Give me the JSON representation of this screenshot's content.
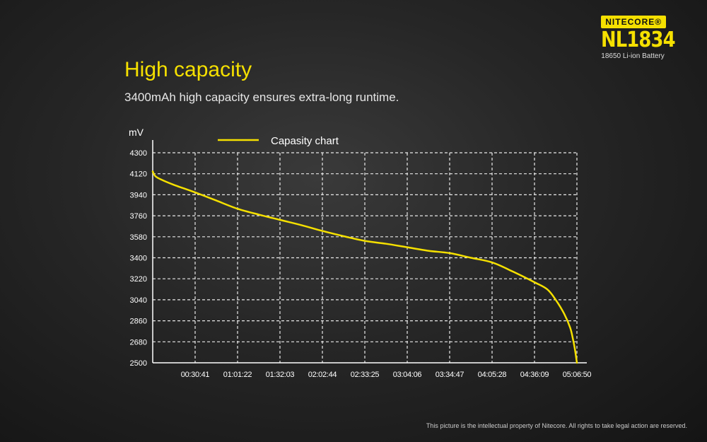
{
  "brand": {
    "logo": "NITECORE®",
    "model": "NL1834",
    "subtitle": "18650 Li-ion Battery"
  },
  "headline": "High capacity",
  "tagline": "3400mAh high capacity ensures extra-long runtime.",
  "footer": "This picture is the intellectual property of Nitecore. All rights to take legal action are reserved.",
  "colors": {
    "accent": "#f5e000",
    "grid": "#e8e8e8",
    "background": "#262626"
  },
  "chart_data": {
    "type": "line",
    "title": "",
    "xlabel": "",
    "ylabel": "mV",
    "ylim": [
      2500,
      4300
    ],
    "yticks": [
      "4300",
      "4120",
      "3940",
      "3760",
      "3580",
      "3400",
      "3220",
      "3040",
      "2860",
      "2680",
      "2500"
    ],
    "xticks": [
      "00:30:41",
      "01:01:22",
      "01:32:03",
      "02:02:44",
      "02:33:25",
      "03:04:06",
      "03:34:47",
      "04:05:28",
      "04:36:09",
      "05:06:50"
    ],
    "xlim_seconds": [
      0,
      18410
    ],
    "grid": true,
    "legend": {
      "position": "top-center",
      "label": "Capasity chart"
    },
    "series": [
      {
        "name": "Capasity chart",
        "color": "#f5e000",
        "x": [
          "00:00:00",
          "00:01:50",
          "00:06:08",
          "00:15:20",
          "00:30:41",
          "00:46:01",
          "01:01:22",
          "01:16:42",
          "01:32:03",
          "01:47:23",
          "02:02:44",
          "02:18:05",
          "02:33:25",
          "02:48:46",
          "03:04:06",
          "03:19:27",
          "03:34:47",
          "03:50:08",
          "04:05:28",
          "04:20:49",
          "04:36:09",
          "04:45:22",
          "04:51:30",
          "04:57:38",
          "05:01:58",
          "05:04:01",
          "05:05:36",
          "05:06:50"
        ],
        "y": [
          4140,
          4100,
          4070,
          4025,
          3960,
          3890,
          3820,
          3770,
          3725,
          3680,
          3630,
          3585,
          3545,
          3520,
          3490,
          3460,
          3440,
          3400,
          3360,
          3280,
          3190,
          3130,
          3040,
          2920,
          2800,
          2700,
          2600,
          2500
        ]
      }
    ]
  }
}
